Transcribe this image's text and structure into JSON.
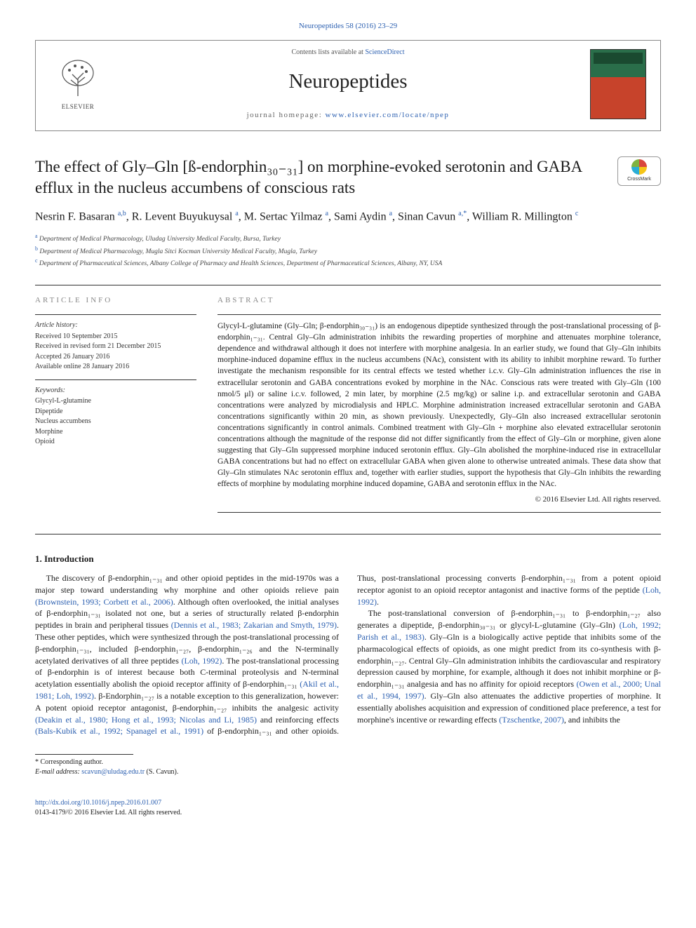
{
  "citation": "Neuropeptides 58 (2016) 23–29",
  "header": {
    "contents_prefix": "Contents lists available at ",
    "contents_link": "ScienceDirect",
    "journal": "Neuropeptides",
    "homepage_prefix": "journal homepage: ",
    "homepage_link": "www.elsevier.com/locate/npep",
    "elsevier": "ELSEVIER"
  },
  "crossmark": "CrossMark",
  "title": "The effect of Gly–Gln [ß-endorphin₃₀₋₃₁] on morphine-evoked serotonin and GABA efflux in the nucleus accumbens of conscious rats",
  "authors_html": "Nesrin F. Basaran <sup>a,b</sup>, R. Levent Buyukuysal <sup>a</sup>, M. Sertac Yilmaz <sup>a</sup>, Sami Aydin <sup>a</sup>, Sinan Cavun <sup>a,*</sup>, William R. Millington <sup>c</sup>",
  "affiliations": {
    "a": "Department of Medical Pharmacology, Uludag University Medical Faculty, Bursa, Turkey",
    "b": "Department of Medical Pharmacology, Mugla Sitci Kocman University Medical Faculty, Mugla, Turkey",
    "c": "Department of Pharmaceutical Sciences, Albany College of Pharmacy and Health Sciences, Department of Pharmaceutical Sciences, Albany, NY, USA"
  },
  "article_info": {
    "label": "ARTICLE INFO",
    "history_label": "Article history:",
    "history": [
      "Received 10 September 2015",
      "Received in revised form 21 December 2015",
      "Accepted 26 January 2016",
      "Available online 28 January 2016"
    ],
    "keywords_label": "Keywords:",
    "keywords": [
      "Glycyl-L-glutamine",
      "Dipeptide",
      "Nucleus accumbens",
      "Morphine",
      "Opioid"
    ]
  },
  "abstract": {
    "label": "ABSTRACT",
    "text": "Glycyl-L-glutamine (Gly–Gln; β-endorphin₃₀₋₃₁) is an endogenous dipeptide synthesized through the post-translational processing of β-endorphin₁₋₃₁. Central Gly–Gln administration inhibits the rewarding properties of morphine and attenuates morphine tolerance, dependence and withdrawal although it does not interfere with morphine analgesia. In an earlier study, we found that Gly–Gln inhibits morphine-induced dopamine efflux in the nucleus accumbens (NAc), consistent with its ability to inhibit morphine reward. To further investigate the mechanism responsible for its central effects we tested whether i.c.v. Gly–Gln administration influences the rise in extracellular serotonin and GABA concentrations evoked by morphine in the NAc. Conscious rats were treated with Gly–Gln (100 nmol/5 μl) or saline i.c.v. followed, 2 min later, by morphine (2.5 mg/kg) or saline i.p. and extracellular serotonin and GABA concentrations were analyzed by microdialysis and HPLC. Morphine administration increased extracellular serotonin and GABA concentrations significantly within 20 min, as shown previously. Unexpectedly, Gly–Gln also increased extracellular serotonin concentrations significantly in control animals. Combined treatment with Gly–Gln + morphine also elevated extracellular serotonin concentrations although the magnitude of the response did not differ significantly from the effect of Gly–Gln or morphine, given alone suggesting that Gly–Gln suppressed morphine induced serotonin efflux. Gly–Gln abolished the morphine-induced rise in extracellular GABA concentrations but had no effect on extracellular GABA when given alone to otherwise untreated animals. These data show that Gly–Gln stimulates NAc serotonin efflux and, together with earlier studies, support the hypothesis that Gly–Gln inhibits the rewarding effects of morphine by modulating morphine induced dopamine, GABA and serotonin efflux in the NAc.",
    "copyright": "© 2016 Elsevier Ltd. All rights reserved."
  },
  "intro": {
    "heading": "1. Introduction",
    "p1_a": "The discovery of β-endorphin₁₋₃₁ and other opioid peptides in the mid-1970s was a major step toward understanding why morphine and other opioids relieve pain ",
    "p1_r1": "(Brownstein, 1993; Corbett et al., 2006)",
    "p1_b": ". Although often overlooked, the initial analyses of β-endorphin₁₋₃₁ isolated not one, but a series of structurally related β-endorphin peptides in brain and peripheral tissues ",
    "p1_r2": "(Dennis et al., 1983; Zakarian and Smyth, 1979)",
    "p1_c": ". These other peptides, which were synthesized through the post-translational processing of β-endorphin₁₋₃₁, included β-endorphin₁₋₂₇, β-endorphin₁₋₂₆ and the N-terminally acetylated derivatives of all three peptides ",
    "p1_r3": "(Loh, 1992)",
    "p1_d": ". The post-translational processing of β-endorphin is of interest because both C-terminal proteolysis and N-terminal acetylation essentially abolish the opioid receptor affinity of β-endorphin₁₋₃₁ ",
    "p1_r4": "(Akil et al., 1981; Loh, 1992)",
    "p1_e": ". β-Endorphin₁₋₂₇ is a notable exception to this generalization, however: A potent opioid ",
    "p2_a": "receptor antagonist, β-endorphin₁₋₂₇ inhibits the analgesic activity ",
    "p2_r1": "(Deakin et al., 1980; Hong et al., 1993; Nicolas and Li, 1985)",
    "p2_b": " and reinforcing effects ",
    "p2_r2": "(Bals-Kubik et al., 1992; Spanagel et al., 1991)",
    "p2_c": " of β-endorphin₁₋₃₁ and other opioids. Thus, post-translational processing converts β-endorphin₁₋₃₁ from a potent opioid receptor agonist to an opioid receptor antagonist and inactive forms of the peptide ",
    "p2_r3": "(Loh, 1992)",
    "p2_d": ".",
    "p3_a": "The post-translational conversion of β-endorphin₁₋₃₁ to β-endorphin₁₋₂₇ also generates a dipeptide, β-endorphin₃₀₋₃₁ or glycyl-L-glutamine (Gly–Gln) ",
    "p3_r1": "(Loh, 1992; Parish et al., 1983)",
    "p3_b": ". Gly–Gln is a biologically active peptide that inhibits some of the pharmacological effects of opioids, as one might predict from its co-synthesis with β-endorphin₁₋₂₇. Central Gly–Gln administration inhibits the cardiovascular and respiratory depression caused by morphine, for example, although it does not inhibit morphine or β-endorphin₁₋₃₁ analgesia and has no affinity for opioid receptors ",
    "p3_r2": "(Owen et al., 2000; Unal et al., 1994, 1997)",
    "p3_c": ". Gly–Gln also attenuates the addictive properties of morphine. It essentially abolishes acquisition and expression of conditioned place preference, a test for morphine's incentive or rewarding effects ",
    "p3_r3": "(Tzschentke, 2007)",
    "p3_d": ", and inhibits the"
  },
  "footer": {
    "corresp_label": "* Corresponding author.",
    "email_label": "E-mail address: ",
    "email": "scavun@uludag.edu.tr",
    "email_suffix": " (S. Cavun).",
    "doi": "http://dx.doi.org/10.1016/j.npep.2016.01.007",
    "issn": "0143-4179/© 2016 Elsevier Ltd. All rights reserved."
  },
  "colors": {
    "link": "#2b5fb0",
    "text": "#1a1a1a",
    "muted": "#888"
  }
}
